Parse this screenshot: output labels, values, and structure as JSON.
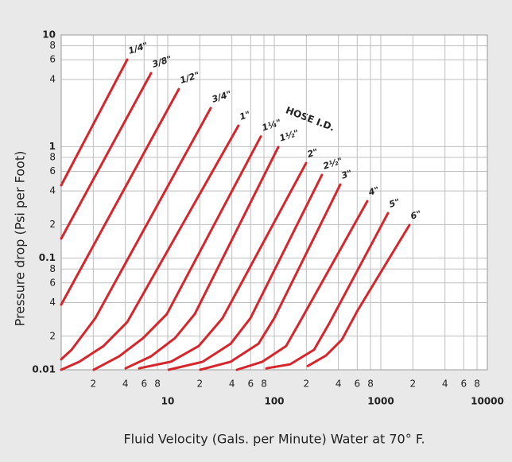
{
  "chart_data": {
    "type": "line",
    "x_label": "Fluid Velocity (Gals. per Minute) Water at 70° F.",
    "y_label": "Pressure drop (Psi per Foot)",
    "annotation": "HOSE I.D.",
    "xscale": "log",
    "yscale": "log",
    "grid": true,
    "color": "#d7262b",
    "xlim": [
      1,
      10000
    ],
    "ylim": [
      0.01,
      10
    ],
    "xticks": [
      2,
      4,
      6,
      8,
      10,
      {
        "value": 20,
        "label": "2"
      },
      {
        "value": 40,
        "label": "4"
      },
      {
        "value": 60,
        "label": "6"
      },
      {
        "value": 80,
        "label": "8"
      },
      100,
      {
        "value": 200,
        "label": "2"
      },
      {
        "value": 400,
        "label": "4"
      },
      {
        "value": 600,
        "label": "6"
      },
      {
        "value": 800,
        "label": "8"
      },
      1000,
      {
        "value": 2000,
        "label": "2"
      },
      {
        "value": 4000,
        "label": "4"
      },
      {
        "value": 6000,
        "label": "6"
      },
      {
        "value": 8000,
        "label": "8"
      },
      10000
    ],
    "yticks": [
      10,
      8,
      6,
      4,
      1,
      {
        "value": 0.8,
        "label": "8"
      },
      {
        "value": 0.6,
        "label": "6"
      },
      {
        "value": 0.4,
        "label": "4"
      },
      {
        "value": 0.2,
        "label": "2"
      },
      0.1,
      {
        "value": 0.08,
        "label": "8"
      },
      {
        "value": 0.06,
        "label": "6"
      },
      {
        "value": 0.04,
        "label": "4"
      },
      {
        "value": 0.02,
        "label": "2"
      },
      0.01
    ],
    "series": [
      {
        "name": "1/4\"",
        "x": [
          1,
          4.16
        ],
        "values": [
          0.45,
          6.01
        ]
      },
      {
        "name": "3/8\"",
        "x": [
          1,
          6.97
        ],
        "values": [
          0.15,
          4.55
        ]
      },
      {
        "name": "1/2\"",
        "x": [
          1,
          12.7
        ],
        "values": [
          0.0384,
          3.27
        ]
      },
      {
        "name": "3/4\"",
        "x": [
          1,
          1.25,
          2.09,
          25.3
        ],
        "values": [
          0.0124,
          0.0151,
          0.029,
          2.21
        ]
      },
      {
        "name": "1\"",
        "x": [
          1,
          1.48,
          2.49,
          4.16,
          46.1
        ],
        "values": [
          0.01,
          0.0118,
          0.0163,
          0.0267,
          1.54
        ]
      },
      {
        "name": "1¼\"",
        "x": [
          2.02,
          3.5,
          5.87,
          9.8,
          74.7
        ],
        "values": [
          0.01,
          0.0132,
          0.0192,
          0.0315,
          1.23
        ]
      },
      {
        "name": "1½\"",
        "x": [
          4.02,
          6.97,
          11.7,
          17.9,
          109
        ],
        "values": [
          0.0103,
          0.0132,
          0.0192,
          0.0315,
          0.99
        ]
      },
      {
        "name": "2\"",
        "x": [
          5.39,
          10.7,
          19.5,
          32.7,
          199
        ],
        "values": [
          0.0103,
          0.0118,
          0.0163,
          0.029,
          0.711
        ]
      },
      {
        "name": "2½\"",
        "x": [
          10.2,
          21.3,
          38.9,
          59.7,
          280
        ],
        "values": [
          0.01,
          0.0118,
          0.0171,
          0.029,
          0.557
        ]
      },
      {
        "name": "3\"",
        "x": [
          20.2,
          38.9,
          71,
          100,
          416
        ],
        "values": [
          0.01,
          0.0118,
          0.0171,
          0.029,
          0.457
        ]
      },
      {
        "name": "4\"",
        "x": [
          44.6,
          77.3,
          129,
          182,
          747
        ],
        "values": [
          0.01,
          0.0118,
          0.0163,
          0.029,
          0.324
        ]
      },
      {
        "name": "5\"",
        "x": [
          84.2,
          141,
          236,
          333,
          1167
        ],
        "values": [
          0.0103,
          0.0112,
          0.0151,
          0.0267,
          0.253
        ]
      },
      {
        "name": "6\"",
        "x": [
          206,
          305,
          431,
          608,
          1856
        ],
        "values": [
          0.0108,
          0.0134,
          0.0186,
          0.0342,
          0.198
        ]
      }
    ]
  }
}
